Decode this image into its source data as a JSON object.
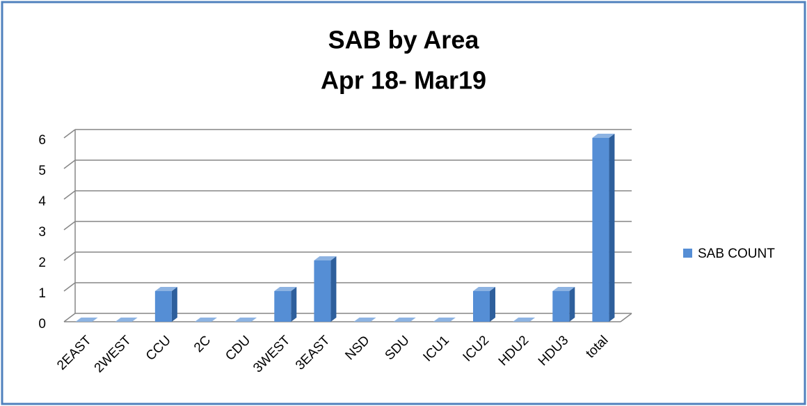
{
  "chart_data": {
    "type": "bar",
    "title": "SAB by Area",
    "subtitle": "Apr 18- Mar19",
    "categories": [
      "2EAST",
      "2WEST",
      "CCU",
      "2C",
      "CDU",
      "3WEST",
      "3EAST",
      "NSD",
      "SDU",
      "ICU1",
      "ICU2",
      "HDU2",
      "HDU3",
      "total"
    ],
    "series": [
      {
        "name": "SAB COUNT",
        "color": "#558ed5",
        "values": [
          0,
          0,
          1,
          0,
          0,
          1,
          2,
          0,
          0,
          0,
          1,
          0,
          1,
          6
        ]
      }
    ],
    "ylim": [
      0,
      6
    ],
    "yticks": [
      0,
      1,
      2,
      3,
      4,
      5,
      6
    ],
    "grid": true,
    "legend": "right"
  }
}
